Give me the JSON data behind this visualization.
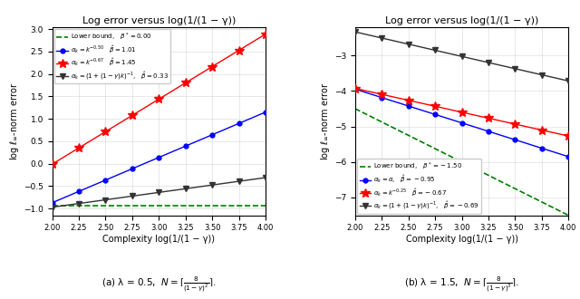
{
  "title": "Log error versus log(1/(1 − γ))",
  "xlabel": "Complexity log(1/(1 − γ))",
  "ylabel": "log $\\ell_\\infty$-norm error",
  "xvals": [
    2.0,
    2.25,
    2.5,
    2.75,
    3.0,
    3.25,
    3.5,
    3.75,
    4.0
  ],
  "subplot1": {
    "lower_bound_label": "Lower bound,   $\\beta^* = 0.00$",
    "lower_bound_slope": 0.0,
    "lower_bound_intercept": -0.93,
    "lines": [
      {
        "label": "$\\alpha_k = k^{-0.50}$   $\\hat{\\beta} = 1.01$",
        "color": "blue",
        "marker": "o",
        "markersize": 3.5,
        "slope": 1.01,
        "intercept": -2.89
      },
      {
        "label": "$\\alpha_k = k^{-0.67}$   $\\hat{\\beta} = 1.45$",
        "color": "red",
        "marker": "*",
        "markersize": 7,
        "slope": 1.45,
        "intercept": -2.91
      },
      {
        "label": "$\\alpha_k = (1 + (1-\\gamma)k)^{-1}$,   $\\hat{\\beta} = 0.33$",
        "color": "#333333",
        "marker": "v",
        "markersize": 4.5,
        "slope": 0.33,
        "intercept": -1.63
      }
    ],
    "ylim": [
      -1.15,
      3.05
    ],
    "yticks": [
      -1.0,
      -0.5,
      0.0,
      0.5,
      1.0,
      1.5,
      2.0,
      2.5,
      3.0
    ],
    "legend_loc": "upper left"
  },
  "subplot2": {
    "lower_bound_label": "Lower bound,   $\\beta^* = -1.50$",
    "lower_bound_slope": -1.5,
    "lower_bound_intercept": -1.5,
    "lines": [
      {
        "label": "$\\alpha_k = \\alpha$,   $\\hat{\\beta} = -0.95$",
        "color": "blue",
        "marker": "o",
        "markersize": 3.5,
        "slope": -0.95,
        "intercept": -2.05
      },
      {
        "label": "$\\alpha_k = k^{-0.25}$   $\\hat{\\beta} = -0.67$",
        "color": "red",
        "marker": "*",
        "markersize": 7,
        "slope": -0.67,
        "intercept": -2.59
      },
      {
        "label": "$\\alpha_k = (1+(1-\\gamma)k)^{-1}$,   $\\hat{\\beta} = -0.69$",
        "color": "#333333",
        "marker": "v",
        "markersize": 4.5,
        "slope": -0.69,
        "intercept": -0.96
      }
    ],
    "ylim": [
      -7.5,
      -2.2
    ],
    "yticks": [
      -7.0,
      -6.0,
      -5.0,
      -4.0,
      -3.0
    ],
    "legend_loc": "lower left"
  }
}
